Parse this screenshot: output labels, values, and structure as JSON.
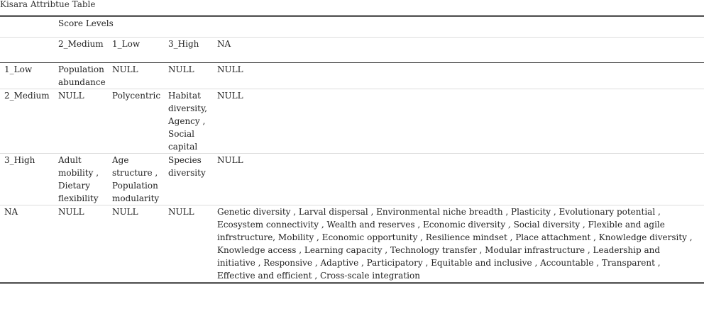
{
  "caption": "Kisara Attribtue Table",
  "header": {
    "group_label": "Score Levels",
    "columns": [
      "",
      "2_Medium",
      "1_Low",
      "3_High",
      "NA"
    ]
  },
  "rows": [
    {
      "label": "1_Low",
      "cells": [
        "Population abundance",
        "NULL",
        "NULL",
        "NULL"
      ]
    },
    {
      "label": "2_Medium",
      "cells": [
        "NULL",
        "Polycentric",
        "Habitat diversity, Agency , Social capital",
        "NULL"
      ]
    },
    {
      "label": "3_High",
      "cells": [
        "Adult mobility , Dietary flexibility",
        "Age structure , Population modularity",
        "Species diversity",
        "NULL"
      ]
    },
    {
      "label": "NA",
      "cells": [
        "NULL",
        "NULL",
        "NULL",
        "Genetic diversity , Larval dispersal , Environmental niche breadth , Plasticity , Evolutionary potential , Ecosystem connectivity , Wealth and reserves , Economic diversity , Social diversity , Flexible and agile infrstructure, Mobility , Economic opportunity , Resilience mindset , Place attachment , Knowledge diversity , Knowledge access , Learning capacity , Technology transfer , Modular infrastructure , Leadership and initiative , Responsive , Adaptive , Participatory , Equitable and inclusive , Accountable , Transparent , Effective and efficient , Cross-scale integration"
      ]
    }
  ]
}
